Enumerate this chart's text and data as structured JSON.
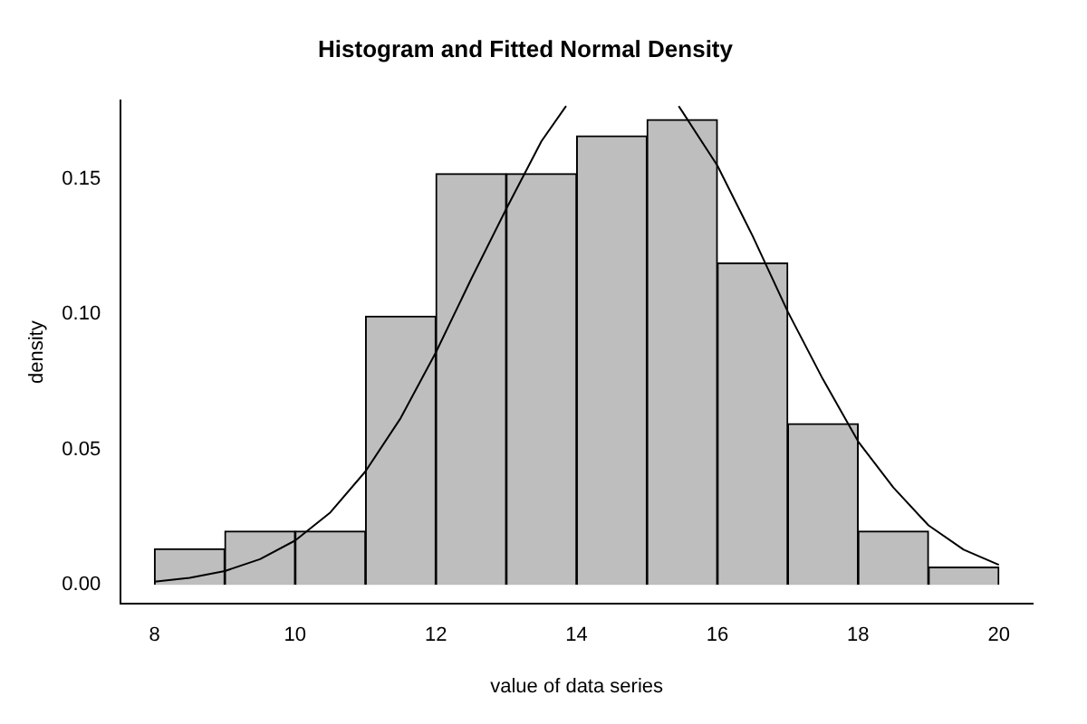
{
  "chart_data": {
    "type": "histogram",
    "title": "Histogram and Fitted Normal Density",
    "xlabel": "value of data series",
    "ylabel": "density",
    "bins": [
      8,
      9,
      10,
      11,
      12,
      13,
      14,
      15,
      16,
      17,
      18,
      19,
      20
    ],
    "values": [
      0.0133,
      0.0199,
      0.0199,
      0.0993,
      0.152,
      0.152,
      0.166,
      0.172,
      0.119,
      0.0596,
      0.0199,
      0.0066
    ],
    "color": "#bebebe",
    "series": [
      {
        "type": "line",
        "color": "#000000",
        "x": [
          8,
          8.5,
          9,
          9.5,
          10,
          10.5,
          11,
          11.5,
          12,
          12.5,
          13,
          13.5,
          13.85,
          14.65,
          15.45,
          15.5,
          16,
          16.5,
          17,
          17.5,
          18,
          18.5,
          19,
          19.5,
          20
        ],
        "values": [
          0.0012,
          0.0026,
          0.0051,
          0.0095,
          0.0164,
          0.0268,
          0.042,
          0.0617,
          0.086,
          0.113,
          0.139,
          0.164,
          0.177,
          null,
          0.177,
          0.175,
          0.155,
          0.129,
          0.101,
          0.076,
          0.053,
          0.036,
          0.022,
          0.013,
          0.0074
        ]
      }
    ],
    "xlim": [
      7.52,
      20.48
    ],
    "xticks": [
      8,
      10,
      12,
      14,
      16,
      18,
      20
    ],
    "ylim": [
      -0.007,
      0.179
    ],
    "yticks": [
      {
        "value": 0,
        "label": "0.00"
      },
      {
        "value": 0.05,
        "label": "0.05"
      },
      {
        "value": 0.1,
        "label": "0.10"
      },
      {
        "value": 0.15,
        "label": "0.15"
      }
    ],
    "grid": false,
    "legend": false
  }
}
